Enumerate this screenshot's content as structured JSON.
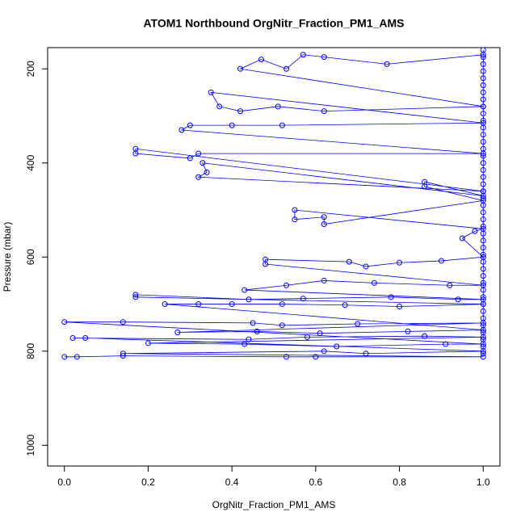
{
  "chart_data": {
    "type": "line",
    "markers": true,
    "title": "ATOM1 Northbound OrgNitr_Fraction_PM1_AMS",
    "x_label": "OrgNitr_Fraction_PM1_AMS",
    "y_label": "Pressure (mbar)",
    "y_inverted": true,
    "xlim": [
      -0.04,
      1.04
    ],
    "ylim": [
      1044,
      155
    ],
    "xticks": [
      {
        "value": 0,
        "label": "0.0"
      },
      {
        "value": 0.2,
        "label": "0.2"
      },
      {
        "value": 0.4,
        "label": "0.4"
      },
      {
        "value": 0.6,
        "label": "0.6"
      },
      {
        "value": 0.8,
        "label": "0.8"
      },
      {
        "value": 1,
        "label": "1.0"
      }
    ],
    "yticks": [
      200,
      400,
      600,
      800,
      1000
    ],
    "x": [
      0.0,
      0.03,
      0.14,
      0.53,
      0.6,
      1.0,
      0.14,
      0.62,
      0.72,
      1.0,
      0.05,
      0.02,
      0.44,
      0.58,
      0.86,
      1.0,
      0.2,
      0.43,
      0.65,
      0.91,
      1.0,
      0.0,
      0.14,
      0.45,
      0.52,
      0.7,
      1.0,
      0.27,
      0.46,
      0.61,
      0.82,
      1.0,
      0.24,
      0.32,
      0.4,
      0.52,
      0.67,
      0.8,
      1.0,
      0.17,
      0.17,
      0.44,
      0.57,
      0.78,
      0.94,
      1.0,
      0.43,
      0.53,
      0.62,
      0.74,
      0.92,
      1.0,
      0.48,
      0.48,
      0.68,
      0.72,
      0.8,
      0.9,
      1.0,
      0.95,
      0.98,
      1.0,
      0.55,
      0.55,
      0.62,
      0.62,
      1.0,
      0.86,
      0.86,
      1.0,
      0.33,
      0.34,
      0.32,
      1.0,
      0.17,
      0.17,
      0.3,
      0.32,
      1.0,
      0.28,
      0.3,
      0.4,
      0.52,
      1.0,
      0.35,
      0.37,
      0.42,
      0.51,
      0.62,
      1.0,
      0.42,
      0.47,
      0.53,
      0.57,
      0.62,
      0.77,
      1.0,
      1.0,
      1.0,
      1.0,
      1.0,
      1.0,
      1.0,
      1.0,
      1.0,
      1.0,
      1.0,
      1.0,
      1.0,
      1.0,
      1.0,
      1.0,
      1.0,
      1.0,
      1.0,
      1.0,
      1.0,
      1.0,
      1.0,
      1.0,
      1.0,
      1.0,
      1.0,
      1.0,
      1.0,
      1.0,
      1.0,
      1.0,
      1.0,
      1.0,
      1.0,
      1.0,
      1.0,
      1.0,
      1.0,
      1.0,
      1.0,
      1.0,
      1.0,
      1.0,
      1.0
    ],
    "series": [
      {
        "color": "#0000ff",
        "values": [
          812,
          812,
          810,
          812,
          812,
          812,
          805,
          800,
          805,
          800,
          772,
          772,
          775,
          770,
          768,
          770,
          783,
          785,
          790,
          785,
          785,
          738,
          738,
          740,
          745,
          742,
          740,
          760,
          758,
          762,
          758,
          755,
          700,
          700,
          700,
          700,
          702,
          705,
          700,
          685,
          680,
          690,
          688,
          685,
          690,
          690,
          670,
          660,
          650,
          655,
          660,
          660,
          615,
          605,
          610,
          620,
          612,
          608,
          600,
          560,
          545,
          540,
          500,
          520,
          515,
          530,
          480,
          450,
          440,
          470,
          400,
          420,
          430,
          460,
          370,
          380,
          390,
          380,
          380,
          330,
          320,
          320,
          320,
          315,
          250,
          280,
          290,
          280,
          290,
          280,
          200,
          180,
          200,
          170,
          175,
          190,
          170,
          160,
          175,
          190,
          205,
          220,
          235,
          250,
          265,
          280,
          295,
          310,
          325,
          340,
          355,
          370,
          385,
          400,
          415,
          430,
          445,
          460,
          475,
          490,
          505,
          520,
          535,
          550,
          565,
          580,
          595,
          610,
          625,
          640,
          655,
          670,
          685,
          700,
          715,
          730,
          745,
          760,
          775,
          790,
          805
        ]
      }
    ]
  }
}
